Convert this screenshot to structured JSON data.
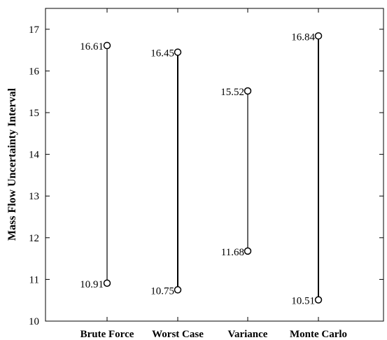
{
  "chart_data": {
    "type": "interval",
    "title": "",
    "xlabel": "",
    "ylabel": "Mass Flow Uncertainty Interval",
    "ylim": [
      10,
      17.5
    ],
    "yticks": [
      10,
      11,
      12,
      13,
      14,
      15,
      16,
      17
    ],
    "grid": false,
    "categories": [
      "Brute Force",
      "Worst Case",
      "Variance",
      "Monte Carlo"
    ],
    "lower": [
      10.91,
      10.75,
      11.68,
      10.51
    ],
    "upper": [
      16.61,
      16.45,
      15.52,
      16.84
    ],
    "lower_labels": [
      "10.91",
      "10.75",
      "11.68",
      "10.51"
    ],
    "upper_labels": [
      "16.61",
      "16.45",
      "15.52",
      "16.84"
    ]
  }
}
